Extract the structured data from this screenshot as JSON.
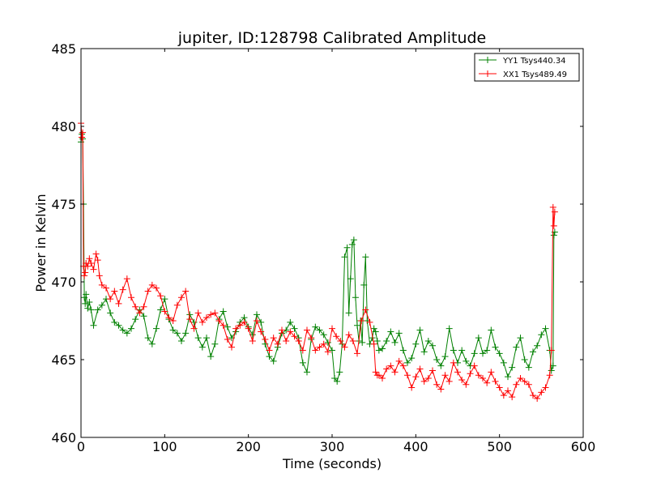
{
  "chart_data": {
    "type": "line",
    "title": "jupiter, ID:128798 Calibrated Amplitude",
    "xlabel": "Time (seconds)",
    "ylabel": "Power in Kelvin",
    "xlim": [
      0,
      600
    ],
    "ylim": [
      460,
      485
    ],
    "xticks": [
      "0",
      "100",
      "200",
      "300",
      "400",
      "500",
      "600"
    ],
    "yticks": [
      "460",
      "465",
      "470",
      "475",
      "480",
      "485"
    ],
    "grid": false,
    "legend_position": "top-right",
    "marker": "+",
    "series": [
      {
        "name": "YY1 Tsys440.34",
        "color": "#008000",
        "x": [
          0,
          1,
          2,
          3,
          4,
          5,
          6,
          8,
          10,
          12,
          15,
          20,
          25,
          30,
          35,
          40,
          45,
          50,
          55,
          60,
          65,
          70,
          75,
          80,
          85,
          90,
          95,
          100,
          105,
          110,
          115,
          120,
          125,
          130,
          135,
          140,
          145,
          150,
          155,
          160,
          165,
          170,
          175,
          180,
          185,
          190,
          195,
          200,
          205,
          210,
          215,
          220,
          225,
          230,
          235,
          240,
          245,
          250,
          255,
          260,
          265,
          270,
          275,
          280,
          285,
          290,
          295,
          300,
          303,
          306,
          309,
          312,
          315,
          318,
          320,
          322,
          324,
          326,
          328,
          330,
          332,
          334,
          336,
          338,
          340,
          342,
          345,
          348,
          350,
          352,
          354,
          356,
          360,
          365,
          370,
          375,
          380,
          385,
          390,
          395,
          400,
          405,
          410,
          415,
          420,
          425,
          430,
          435,
          440,
          445,
          450,
          455,
          460,
          465,
          470,
          475,
          480,
          485,
          490,
          495,
          500,
          505,
          510,
          515,
          520,
          525,
          530,
          535,
          540,
          545,
          550,
          555,
          560,
          562,
          564,
          565,
          566
        ],
        "y": [
          479,
          479.5,
          479.2,
          475,
          469,
          468.6,
          469.2,
          468.3,
          468.7,
          468.2,
          467.2,
          468.2,
          468.5,
          468.9,
          468.0,
          467.4,
          467.2,
          466.9,
          466.7,
          467.0,
          467.6,
          468.2,
          467.8,
          466.4,
          466.0,
          467.0,
          468.2,
          468.9,
          467.6,
          466.9,
          466.7,
          466.2,
          466.7,
          467.9,
          467.4,
          466.4,
          465.8,
          466.4,
          465.2,
          466.0,
          467.6,
          468.1,
          467.1,
          466.4,
          466.8,
          467.4,
          467.7,
          467.1,
          466.6,
          467.9,
          467.4,
          466.0,
          465.2,
          464.9,
          465.8,
          466.7,
          466.9,
          467.4,
          467.0,
          466.4,
          464.8,
          464.2,
          466.3,
          467.1,
          466.9,
          466.6,
          466.1,
          465.6,
          463.8,
          463.6,
          464.2,
          466.0,
          471.6,
          472.2,
          468.0,
          470.2,
          472.4,
          472.7,
          469.0,
          467.2,
          466.2,
          467.5,
          466.1,
          469.8,
          471.6,
          467.5,
          466.0,
          466.4,
          467.0,
          466.8,
          466.2,
          465.6,
          465.7,
          466.2,
          466.8,
          466.1,
          466.7,
          465.6,
          464.8,
          465.1,
          466.0,
          466.9,
          465.5,
          466.2,
          465.9,
          465.0,
          464.6,
          465.2,
          467.0,
          465.6,
          464.8,
          465.6,
          464.9,
          464.6,
          465.4,
          466.4,
          465.4,
          465.6,
          466.9,
          465.8,
          465.4,
          464.8,
          463.9,
          464.5,
          465.8,
          466.4,
          465.0,
          464.5,
          465.5,
          465.9,
          466.6,
          467.0,
          465.6,
          464.3,
          464.6,
          473.0,
          473.2
        ]
      },
      {
        "name": "XX1 Tsys489.49",
        "color": "#ff0000",
        "x": [
          0,
          1,
          2,
          3,
          4,
          5,
          6,
          8,
          10,
          12,
          15,
          18,
          20,
          22,
          25,
          30,
          35,
          40,
          45,
          50,
          55,
          60,
          65,
          70,
          75,
          80,
          85,
          90,
          95,
          100,
          105,
          110,
          115,
          120,
          125,
          130,
          135,
          140,
          145,
          150,
          155,
          160,
          165,
          170,
          175,
          180,
          185,
          190,
          195,
          200,
          205,
          210,
          215,
          220,
          225,
          230,
          235,
          240,
          245,
          250,
          255,
          260,
          265,
          270,
          275,
          280,
          285,
          290,
          295,
          300,
          305,
          310,
          315,
          320,
          325,
          330,
          335,
          340,
          345,
          350,
          352,
          354,
          356,
          360,
          365,
          370,
          375,
          380,
          385,
          390,
          395,
          400,
          405,
          410,
          415,
          420,
          425,
          430,
          435,
          440,
          445,
          450,
          455,
          460,
          465,
          470,
          475,
          480,
          485,
          490,
          495,
          500,
          505,
          510,
          515,
          520,
          525,
          530,
          535,
          540,
          545,
          550,
          555,
          560,
          562,
          564,
          565,
          566
        ],
        "y": [
          480.2,
          479.3,
          479.6,
          471.0,
          470.4,
          470.6,
          471.2,
          471.0,
          471.5,
          471.2,
          470.8,
          471.8,
          471.4,
          470.4,
          469.8,
          469.6,
          468.9,
          469.4,
          468.6,
          469.5,
          470.2,
          469.0,
          468.4,
          468.0,
          468.4,
          469.4,
          469.8,
          469.6,
          469.1,
          468.1,
          467.7,
          467.5,
          468.5,
          469.0,
          469.4,
          467.6,
          467.0,
          468.0,
          467.4,
          467.7,
          467.9,
          468.0,
          467.5,
          467.2,
          466.3,
          465.8,
          467.0,
          467.2,
          467.4,
          467.0,
          466.2,
          467.5,
          466.8,
          466.3,
          465.6,
          466.4,
          466.0,
          466.9,
          466.2,
          466.8,
          466.5,
          466.2,
          465.6,
          466.9,
          466.4,
          465.6,
          465.8,
          466.0,
          465.5,
          467.0,
          466.5,
          466.2,
          465.8,
          466.6,
          466.2,
          465.4,
          467.5,
          468.2,
          467.4,
          466.0,
          464.2,
          464.0,
          464.0,
          463.8,
          464.4,
          464.6,
          464.2,
          464.9,
          464.6,
          464.0,
          463.2,
          463.9,
          464.4,
          463.6,
          463.8,
          464.3,
          463.4,
          463.1,
          464.0,
          463.6,
          464.8,
          464.2,
          463.7,
          463.4,
          464.1,
          464.6,
          464.0,
          463.8,
          463.5,
          464.2,
          463.6,
          463.2,
          462.7,
          463.0,
          462.6,
          463.4,
          463.8,
          463.6,
          463.4,
          462.7,
          462.5,
          462.9,
          463.2,
          464.0,
          465.6,
          474.8,
          473.6,
          474.5
        ]
      }
    ]
  }
}
